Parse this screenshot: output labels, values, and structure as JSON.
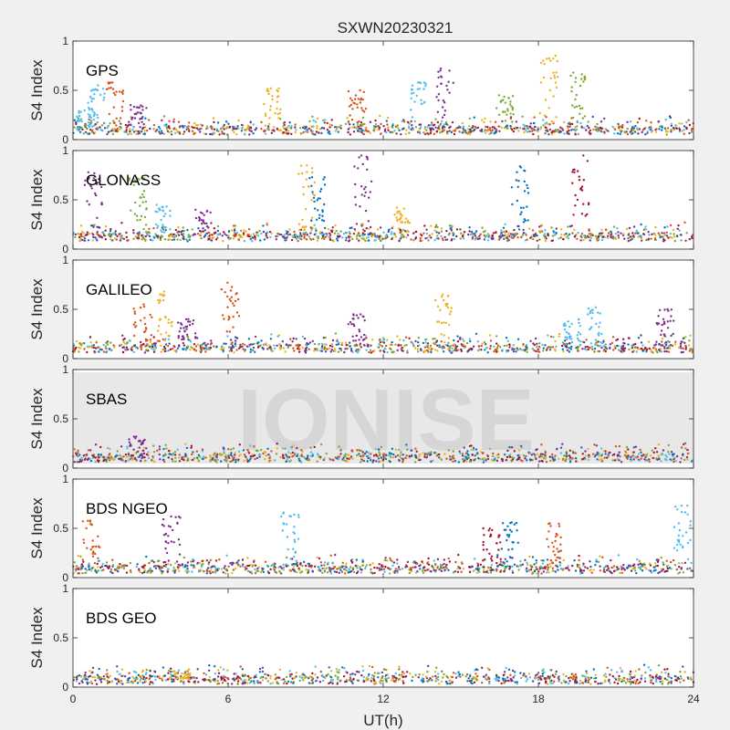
{
  "chart_data": {
    "type": "scatter",
    "title": "SXWN20230321",
    "xlabel": "UT(h)",
    "ylabel": "S4 Index",
    "xlim": [
      0,
      24
    ],
    "ylim": [
      0,
      1
    ],
    "xticks": [
      0,
      6,
      12,
      18,
      24
    ],
    "yticks": [
      0,
      0.5,
      1
    ],
    "grid": false,
    "watermark": "IONISE",
    "colors": [
      "#0072BD",
      "#D95319",
      "#EDB120",
      "#7E2F8E",
      "#77AC30",
      "#4DBEEE",
      "#A2142F"
    ],
    "panels": [
      {
        "label": "GPS",
        "baseline": 0.09,
        "spikes": [
          {
            "x": 0.5,
            "y": 0.3,
            "color": "#4DBEEE"
          },
          {
            "x": 0.9,
            "y": 0.55,
            "color": "#4DBEEE"
          },
          {
            "x": 1.6,
            "y": 0.58,
            "color": "#D95319"
          },
          {
            "x": 2.5,
            "y": 0.35,
            "color": "#7E2F8E"
          },
          {
            "x": 7.7,
            "y": 0.52,
            "color": "#EDB120"
          },
          {
            "x": 11.0,
            "y": 0.5,
            "color": "#D95319"
          },
          {
            "x": 13.3,
            "y": 0.58,
            "color": "#4DBEEE"
          },
          {
            "x": 14.4,
            "y": 0.72,
            "color": "#7E2F8E"
          },
          {
            "x": 16.7,
            "y": 0.45,
            "color": "#77AC30"
          },
          {
            "x": 18.4,
            "y": 0.85,
            "color": "#EDB120"
          },
          {
            "x": 19.5,
            "y": 0.68,
            "color": "#77AC30"
          }
        ]
      },
      {
        "label": "GLONASS",
        "baseline": 0.12,
        "spikes": [
          {
            "x": 0.8,
            "y": 0.78,
            "color": "#7E2F8E"
          },
          {
            "x": 2.5,
            "y": 0.72,
            "color": "#77AC30"
          },
          {
            "x": 3.5,
            "y": 0.45,
            "color": "#4DBEEE"
          },
          {
            "x": 5.0,
            "y": 0.4,
            "color": "#7E2F8E"
          },
          {
            "x": 9.0,
            "y": 0.85,
            "color": "#EDB120"
          },
          {
            "x": 9.5,
            "y": 0.73,
            "color": "#0072BD"
          },
          {
            "x": 11.2,
            "y": 0.95,
            "color": "#7E2F8E"
          },
          {
            "x": 12.7,
            "y": 0.42,
            "color": "#EDB120"
          },
          {
            "x": 17.3,
            "y": 0.84,
            "color": "#0072BD"
          },
          {
            "x": 19.6,
            "y": 0.95,
            "color": "#A2142F"
          }
        ]
      },
      {
        "label": "GALILEO",
        "baseline": 0.1,
        "spikes": [
          {
            "x": 2.7,
            "y": 0.55,
            "color": "#D95319"
          },
          {
            "x": 3.6,
            "y": 0.68,
            "color": "#EDB120"
          },
          {
            "x": 4.4,
            "y": 0.4,
            "color": "#7E2F8E"
          },
          {
            "x": 6.1,
            "y": 0.77,
            "color": "#D95319"
          },
          {
            "x": 11.0,
            "y": 0.45,
            "color": "#7E2F8E"
          },
          {
            "x": 14.3,
            "y": 0.65,
            "color": "#EDB120"
          },
          {
            "x": 19.3,
            "y": 0.4,
            "color": "#4DBEEE"
          },
          {
            "x": 20.2,
            "y": 0.52,
            "color": "#4DBEEE"
          },
          {
            "x": 22.9,
            "y": 0.5,
            "color": "#7E2F8E"
          }
        ]
      },
      {
        "label": "SBAS",
        "baseline": 0.1,
        "spikes": [
          {
            "x": 2.5,
            "y": 0.32,
            "color": "#7E2F8E"
          }
        ]
      },
      {
        "label": "BDS NGEO",
        "baseline": 0.08,
        "spikes": [
          {
            "x": 0.7,
            "y": 0.58,
            "color": "#D95319"
          },
          {
            "x": 3.8,
            "y": 0.62,
            "color": "#7E2F8E"
          },
          {
            "x": 8.4,
            "y": 0.66,
            "color": "#4DBEEE"
          },
          {
            "x": 16.2,
            "y": 0.5,
            "color": "#A2142F"
          },
          {
            "x": 16.9,
            "y": 0.56,
            "color": "#0072BD"
          },
          {
            "x": 18.6,
            "y": 0.55,
            "color": "#D95319"
          },
          {
            "x": 23.6,
            "y": 0.73,
            "color": "#4DBEEE"
          }
        ]
      },
      {
        "label": "BDS GEO",
        "baseline": 0.07,
        "spikes": [
          {
            "x": 4.2,
            "y": 0.16,
            "color": "#EDB120"
          }
        ]
      }
    ]
  }
}
